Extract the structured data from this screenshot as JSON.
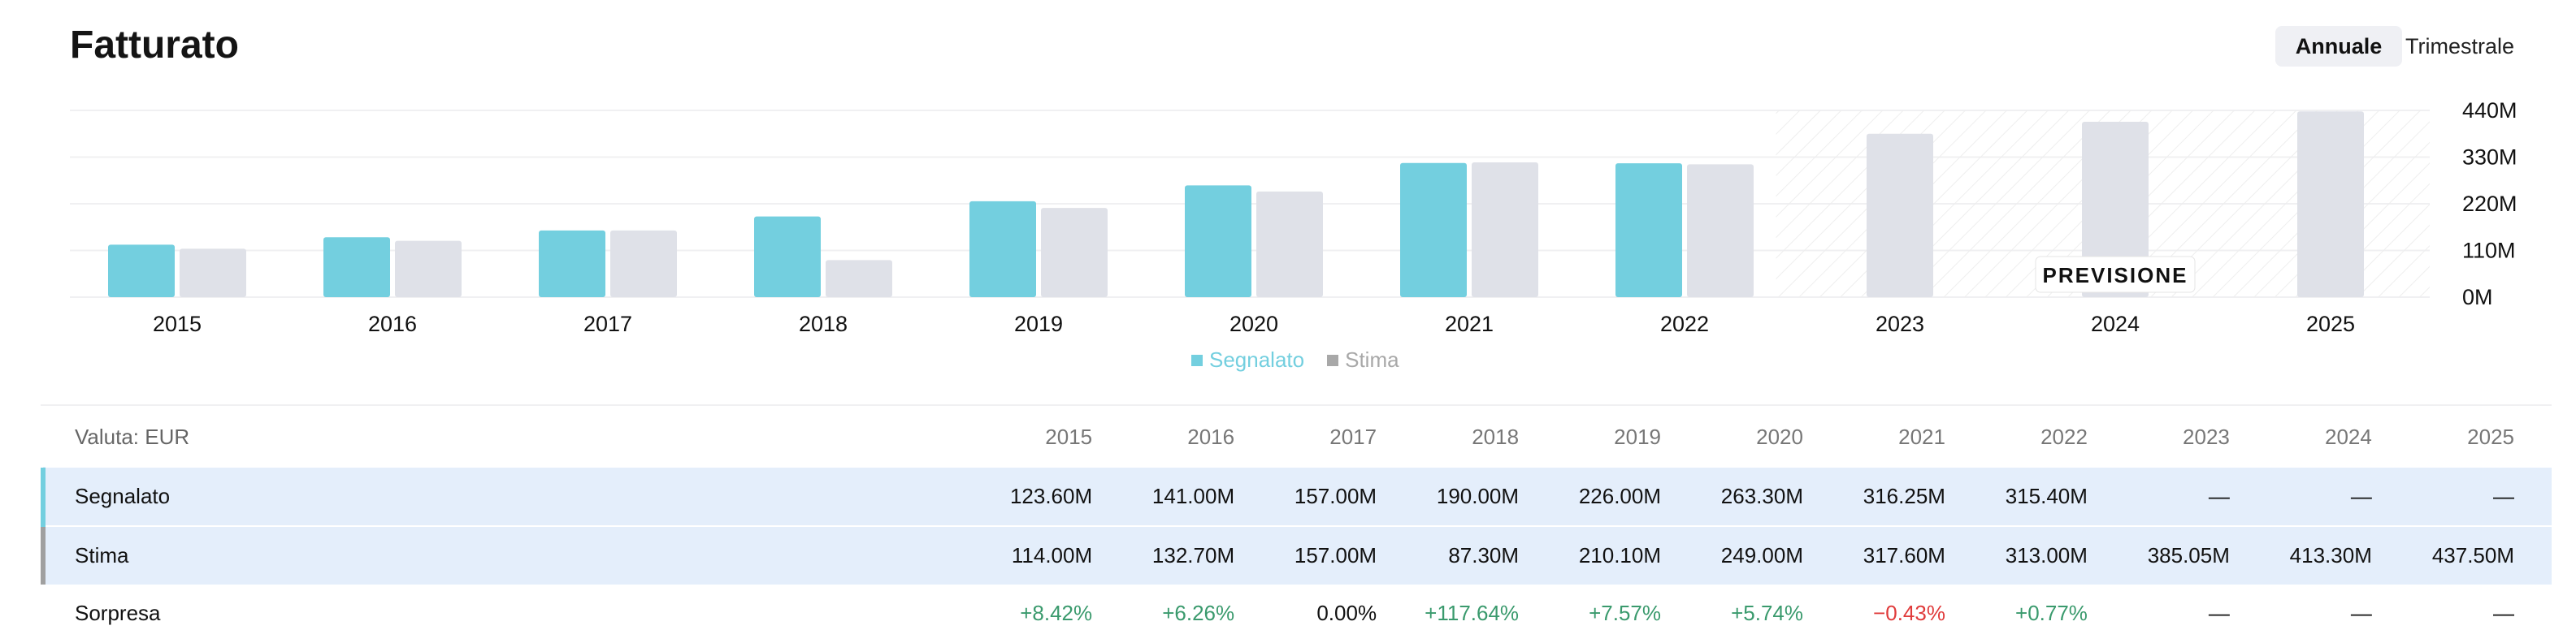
{
  "header": {
    "title": "Fatturato",
    "toggle_annual": "Annuale",
    "toggle_quarterly": "Trimestrale"
  },
  "colors": {
    "reported": "#73cfdf",
    "estimate": "#dfe1e8",
    "positive": "#3a9a6d",
    "negative": "#e03b3b",
    "row_highlight": "#e4eefb"
  },
  "chart_data": {
    "type": "bar",
    "categories": [
      "2015",
      "2016",
      "2017",
      "2018",
      "2019",
      "2020",
      "2021",
      "2022",
      "2023",
      "2024",
      "2025"
    ],
    "series": [
      {
        "name": "Segnalato",
        "values": [
          123.6,
          141.0,
          157.0,
          190.0,
          226.0,
          263.3,
          316.25,
          315.4,
          null,
          null,
          null
        ]
      },
      {
        "name": "Stima",
        "values": [
          114.0,
          132.7,
          157.0,
          87.3,
          210.1,
          249.0,
          317.6,
          313.0,
          385.05,
          413.3,
          437.5
        ]
      }
    ],
    "yticks": [
      "440M",
      "330M",
      "220M",
      "110M",
      "0M"
    ],
    "ytick_values": [
      440,
      330,
      220,
      110,
      0
    ],
    "ylim": [
      0,
      440
    ],
    "forecast_label": "PREVISIONE",
    "forecast_start_index": 8,
    "legend": [
      "Segnalato",
      "Stima"
    ],
    "legend_position": "bottom",
    "grid": true
  },
  "table": {
    "currency_label": "Valuta: EUR",
    "years": [
      "2015",
      "2016",
      "2017",
      "2018",
      "2019",
      "2020",
      "2021",
      "2022",
      "2023",
      "2024",
      "2025"
    ],
    "rows": [
      {
        "label": "Segnalato",
        "values": [
          "123.60M",
          "141.00M",
          "157.00M",
          "190.00M",
          "226.00M",
          "263.30M",
          "316.25M",
          "315.40M",
          "—",
          "—",
          "—"
        ]
      },
      {
        "label": "Stima",
        "values": [
          "114.00M",
          "132.70M",
          "157.00M",
          "87.30M",
          "210.10M",
          "249.00M",
          "317.60M",
          "313.00M",
          "385.05M",
          "413.30M",
          "437.50M"
        ]
      },
      {
        "label": "Sorpresa",
        "values": [
          "+8.42%",
          "+6.26%",
          "0.00%",
          "+117.64%",
          "+7.57%",
          "+5.74%",
          "−0.43%",
          "+0.77%",
          "—",
          "—",
          "—"
        ]
      }
    ]
  }
}
